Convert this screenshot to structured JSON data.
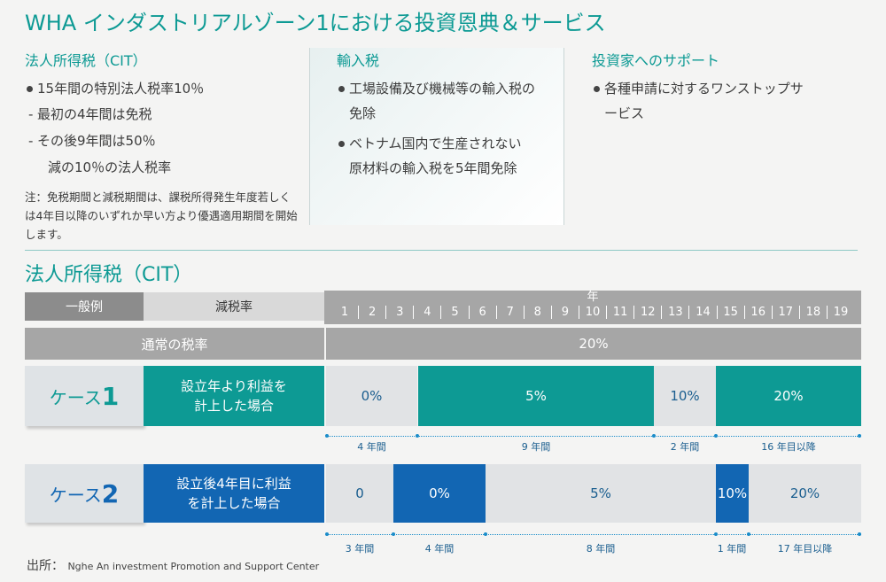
{
  "title": "WHA インダストリアルゾーン1における投資恩典＆サービス",
  "cit_column": {
    "heading": "法人所得税（CIT）",
    "bullet": "15年間の特別法人税率10％",
    "sub1": "最初の4年間は免税",
    "sub2_line1": "その後9年間は50％",
    "sub2_line2": "減の10％の法人税率",
    "note": "注：免税期間と減税期間は、課税所得発生年度若しくは4年目以降のいずれか早い方より優遇適用期間を開始します。"
  },
  "import_column": {
    "heading": "輸入税",
    "bullet1": "工場設備及び機械等の輸入税の免除",
    "bullet2": "ベトナム国内で生産されない原材料の輸入税を5年間免除"
  },
  "support_column": {
    "heading": "投資家へのサポート",
    "bullet1": "各種申請に対するワンストップサービス"
  },
  "table": {
    "section_title": "法人所得税（CIT）",
    "header_general": "一般例",
    "header_reduction": "減税率",
    "header_year": "年",
    "years": [
      "1",
      "2",
      "3",
      "4",
      "5",
      "6",
      "7",
      "8",
      "9",
      "10",
      "11",
      "12",
      "13",
      "14",
      "15",
      "16",
      "17",
      "18",
      "19"
    ],
    "normal_label": "通常の税率",
    "normal_rate": "20%",
    "case1": {
      "label_prefix": "ケース",
      "label_num": "1",
      "desc_line1": "設立年より利益を",
      "desc_line2": "計上した場合",
      "segments": [
        "0%",
        "5%",
        "10%",
        "20%"
      ],
      "durations": [
        "4 年間",
        "9 年間",
        "2 年間",
        "16 年目以降"
      ]
    },
    "case2": {
      "label_prefix": "ケース",
      "label_num": "2",
      "desc_line1": "設立後4年目に利益",
      "desc_line2": "を計上した場合",
      "segments": [
        "0",
        "0%",
        "5%",
        "10%",
        "20%"
      ],
      "durations": [
        "3 年間",
        "4 年間",
        "8 年間",
        "1 年間",
        "17 年目以降"
      ]
    }
  },
  "source_label": "出所：",
  "source_text": "Nghe An investment Promotion and Support Center",
  "colors": {
    "teal": "#0d9a94",
    "blue": "#1266b3",
    "gray": "#8c8c8c"
  }
}
